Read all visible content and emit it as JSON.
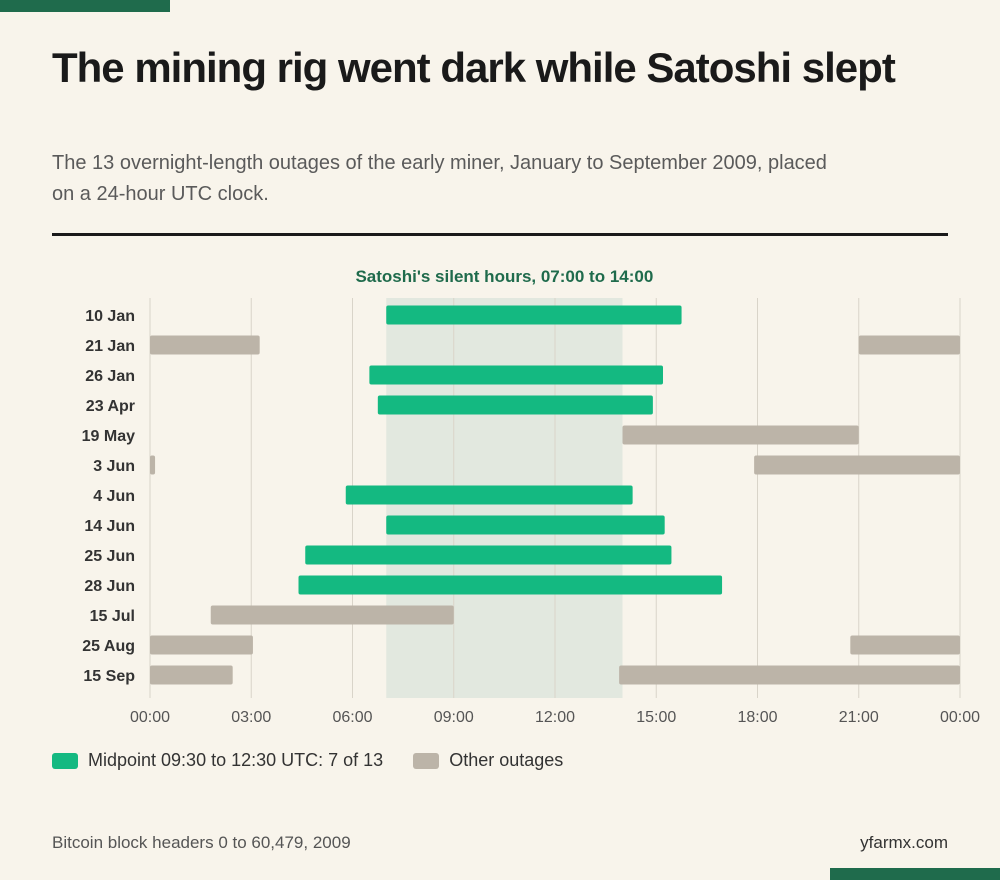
{
  "header": {
    "title": "The mining rig went dark while Satoshi slept",
    "subtitle": "The 13 overnight-length outages of the early miner, January to September 2009, placed on a 24-hour UTC clock."
  },
  "footer": {
    "source": "Bitcoin block headers 0 to 60,479, 2009",
    "brand": "yfarmx.com"
  },
  "colors": {
    "highlight": "#14b981",
    "other": "#bcb4a8",
    "band": "#e2e8df",
    "band_label": "#1f6b4c",
    "accent": "#1f6b4c"
  },
  "legend": {
    "highlight_label": "Midpoint 09:30 to 12:30 UTC: 7 of 13",
    "other_label": "Other outages"
  },
  "chart_data": {
    "type": "bar",
    "subtype": "horizontal-range",
    "x_unit": "hours UTC",
    "xlim": [
      0,
      24
    ],
    "x_ticks": [
      0,
      3,
      6,
      9,
      12,
      15,
      18,
      21,
      24
    ],
    "x_tick_labels": [
      "00:00",
      "03:00",
      "06:00",
      "09:00",
      "12:00",
      "15:00",
      "18:00",
      "21:00",
      "00:00"
    ],
    "grid": "vertical",
    "band": {
      "start": 7,
      "end": 14,
      "label": "Satoshi's silent hours, 07:00 to 14:00"
    },
    "rows": [
      {
        "label": "10 Jan",
        "segments": [
          [
            7.0,
            15.75
          ]
        ],
        "highlight": true
      },
      {
        "label": "21 Jan",
        "segments": [
          [
            0,
            3.25
          ],
          [
            21.0,
            24
          ]
        ],
        "highlight": false
      },
      {
        "label": "26 Jan",
        "segments": [
          [
            6.5,
            15.2
          ]
        ],
        "highlight": true
      },
      {
        "label": "23 Apr",
        "segments": [
          [
            6.75,
            14.9
          ]
        ],
        "highlight": true
      },
      {
        "label": "19 May",
        "segments": [
          [
            14.0,
            21.0
          ]
        ],
        "highlight": false
      },
      {
        "label": "3 Jun",
        "segments": [
          [
            0,
            0.15
          ],
          [
            17.9,
            24
          ]
        ],
        "highlight": false
      },
      {
        "label": "4 Jun",
        "segments": [
          [
            5.8,
            14.3
          ]
        ],
        "highlight": true
      },
      {
        "label": "14 Jun",
        "segments": [
          [
            7.0,
            15.25
          ]
        ],
        "highlight": true
      },
      {
        "label": "25 Jun",
        "segments": [
          [
            4.6,
            15.45
          ]
        ],
        "highlight": true
      },
      {
        "label": "28 Jun",
        "segments": [
          [
            4.4,
            16.95
          ]
        ],
        "highlight": true
      },
      {
        "label": "15 Jul",
        "segments": [
          [
            1.8,
            9.0
          ]
        ],
        "highlight": false
      },
      {
        "label": "25 Aug",
        "segments": [
          [
            0,
            3.05
          ],
          [
            20.75,
            24
          ]
        ],
        "highlight": false
      },
      {
        "label": "15 Sep",
        "segments": [
          [
            0,
            2.45
          ],
          [
            13.9,
            24
          ]
        ],
        "highlight": false
      }
    ]
  }
}
